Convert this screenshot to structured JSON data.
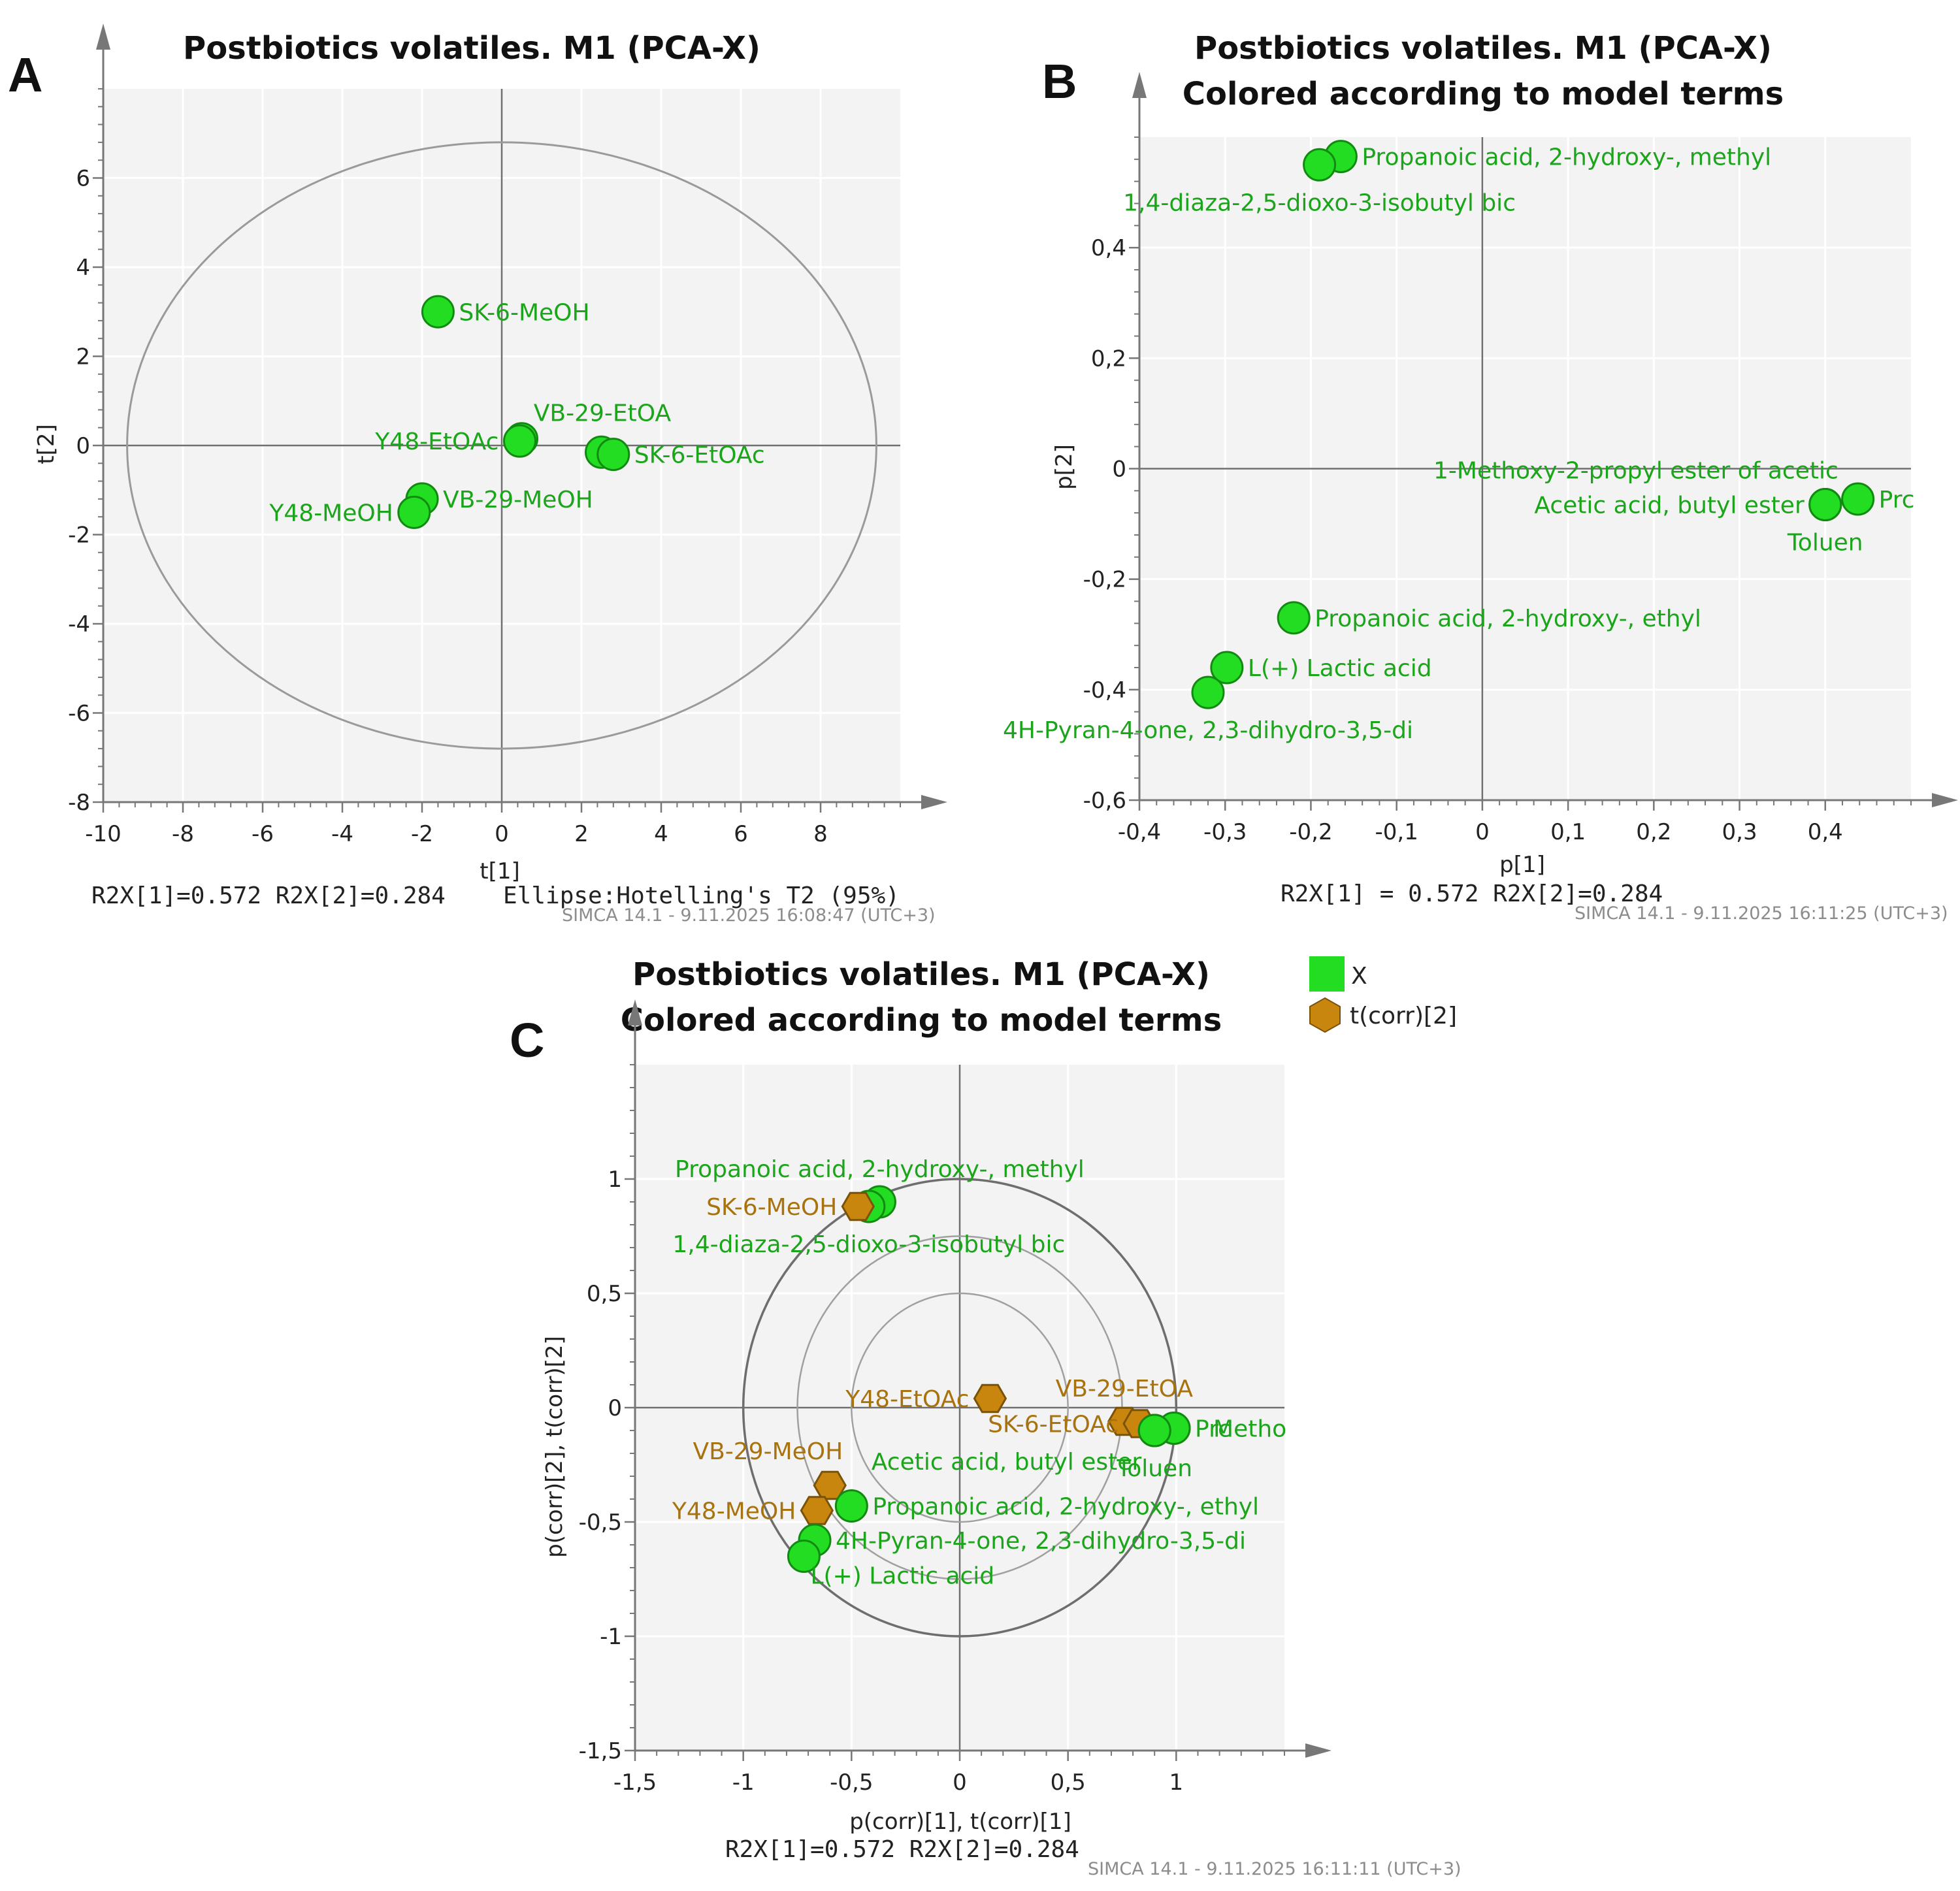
{
  "colors": {
    "point_green": "#22dd22",
    "point_green_edge": "#128a12",
    "label_green": "#1aa51a",
    "point_orange": "#c8860f",
    "point_orange_edge": "#7a5208",
    "label_orange": "#a8730e",
    "plot_bg": "#f3f3f3",
    "grid": "#ffffff",
    "axis": "#777777"
  },
  "chart_data": [
    {
      "id": "A",
      "type": "scatter",
      "panel_label": "A",
      "title": "Postbiotics volatiles. M1 (PCA-X)",
      "xlabel": "t[1]",
      "ylabel": "t[2]",
      "xlim": [
        -10,
        10
      ],
      "ylim": [
        -8,
        8
      ],
      "xticks": [
        -10,
        -8,
        -6,
        -4,
        -2,
        0,
        2,
        4,
        6,
        8
      ],
      "yticks": [
        6,
        4,
        2,
        0,
        -2,
        -4,
        -6,
        -8
      ],
      "grid": true,
      "ellipse": {
        "label": "Ellipse:Hotelling's T2 (95%)",
        "semi_x": 9.4,
        "semi_y": 6.8
      },
      "stats": "R2X[1]=0.572   R2X[2]=0.284",
      "ellipse_caption": "Ellipse:Hotelling's T2 (95%)",
      "footer": "SIMCA 14.1 - 9.11.2025 16:08:47 (UTC+3)",
      "points": [
        {
          "label": "SK-6-MeOH",
          "x": -1.6,
          "y": 3.0,
          "color": "green",
          "label_pos": "right"
        },
        {
          "label": "VB-29-EtOA",
          "x": 0.5,
          "y": 0.15,
          "color": "green",
          "label_pos": "upright",
          "label_x": 0.8,
          "label_y": 0.55
        },
        {
          "label": "Y48-EtOAc",
          "x": 0.45,
          "y": 0.1,
          "color": "green",
          "label_pos": "left"
        },
        {
          "label": "SK-6-EtOAc",
          "x": 2.5,
          "y": -0.15,
          "color": "green",
          "label_pos": "none"
        },
        {
          "label": "SK-6-EtOAc",
          "x": 2.8,
          "y": -0.2,
          "color": "green",
          "label_pos": "right"
        },
        {
          "label": "VB-29-MeOH",
          "x": -2.0,
          "y": -1.2,
          "color": "green",
          "label_pos": "right"
        },
        {
          "label": "Y48-MeOH",
          "x": -2.2,
          "y": -1.5,
          "color": "green",
          "label_pos": "left"
        }
      ]
    },
    {
      "id": "B",
      "type": "scatter",
      "panel_label": "B",
      "title": "Postbiotics volatiles. M1 (PCA-X)",
      "subtitle": "Colored according to model terms",
      "xlabel": "p[1]",
      "ylabel": "p[2]",
      "xlim": [
        -0.4,
        0.5
      ],
      "ylim": [
        -0.6,
        0.6
      ],
      "xticks": [
        -0.4,
        -0.3,
        -0.2,
        -0.1,
        0,
        0.1,
        0.2,
        0.3,
        0.4
      ],
      "xtick_labels": [
        "-0,4",
        "-0,3",
        "-0,2",
        "-0,1",
        "0",
        "0,1",
        "0,2",
        "0,3",
        "0,4"
      ],
      "yticks": [
        0.4,
        0.2,
        0,
        -0.2,
        -0.4,
        -0.6
      ],
      "ytick_labels": [
        "0,4",
        "0,2",
        "0",
        "-0,2",
        "-0,4",
        "-0,6"
      ],
      "grid": true,
      "stats": "R2X[1] = 0.572  R2X[2]=0.284",
      "footer": "SIMCA 14.1 - 9.11.2025 16:11:25 (UTC+3)",
      "points": [
        {
          "label": "Propanoic acid, 2-hydroxy-, methyl",
          "x": -0.165,
          "y": 0.565,
          "color": "green",
          "label_pos": "right"
        },
        {
          "label": "1,4-diaza-2,5-dioxo-3-isobutyl bic",
          "x": -0.19,
          "y": 0.55,
          "color": "green",
          "label_pos": "below"
        },
        {
          "label": "1-Methoxy-2-propyl ester of acetic",
          "x": 0.4,
          "y": -0.065,
          "color": "green",
          "label_pos": "above-left"
        },
        {
          "label": "Acetic acid, butyl ester",
          "x": 0.4,
          "y": -0.065,
          "color": "green",
          "label_pos": "left"
        },
        {
          "label": "Prc",
          "x": 0.438,
          "y": -0.055,
          "color": "green",
          "label_pos": "right"
        },
        {
          "label": "Toluen",
          "x": 0.4,
          "y": -0.065,
          "color": "green",
          "label_pos": "below"
        },
        {
          "label": "Propanoic acid, 2-hydroxy-, ethyl",
          "x": -0.22,
          "y": -0.27,
          "color": "green",
          "label_pos": "right"
        },
        {
          "label": "L(+) Lactic acid",
          "x": -0.298,
          "y": -0.36,
          "color": "green",
          "label_pos": "right"
        },
        {
          "label": "4H-Pyran-4-one, 2,3-dihydro-3,5-di",
          "x": -0.32,
          "y": -0.405,
          "color": "green",
          "label_pos": "below"
        }
      ]
    },
    {
      "id": "C",
      "type": "scatter",
      "panel_label": "C",
      "title": "Postbiotics volatiles. M1 (PCA-X)",
      "subtitle": "Colored according to model terms",
      "xlabel": "p(corr)[1], t(corr)[1]",
      "ylabel": "p(corr)[2], t(corr)[2]",
      "xlim": [
        -1.5,
        1.5
      ],
      "ylim": [
        -1.5,
        1.5
      ],
      "xticks": [
        -1.5,
        -1,
        -0.5,
        0,
        0.5,
        1
      ],
      "xtick_labels": [
        "-1,5",
        "-1",
        "-0,5",
        "0",
        "0,5",
        "1"
      ],
      "yticks": [
        1,
        0.5,
        0,
        -0.5,
        -1,
        -1.5
      ],
      "ytick_labels": [
        "1",
        "0,5",
        "0",
        "-0,5",
        "-1",
        "-1,5"
      ],
      "grid": true,
      "circles_radius": [
        0.5,
        0.75,
        1.0
      ],
      "legend": [
        {
          "label": "X",
          "color": "green",
          "shape": "square"
        },
        {
          "label": "t(corr)[2]",
          "color": "orange",
          "shape": "hexagon"
        }
      ],
      "stats": "R2X[1]=0.572  R2X[2]=0.284",
      "footer": "SIMCA 14.1 - 9.11.2025 16:11:11 (UTC+3)",
      "points": [
        {
          "label": "Propanoic acid, 2-hydroxy-, methyl",
          "x": -0.37,
          "y": 0.9,
          "color": "green",
          "label_pos": "above"
        },
        {
          "label": "1,4-diaza-2,5-dioxo-3-isobutyl bic",
          "x": -0.42,
          "y": 0.88,
          "color": "green",
          "label_pos": "below"
        },
        {
          "label": "SK-6-MeOH",
          "x": -0.47,
          "y": 0.88,
          "color": "orange",
          "label_pos": "left"
        },
        {
          "label": "Y48-EtOAc",
          "x": 0.14,
          "y": 0.04,
          "color": "orange",
          "label_pos": "left"
        },
        {
          "label": "VB-29-EtOA",
          "x": 0.76,
          "y": -0.06,
          "color": "orange",
          "label_pos": "above"
        },
        {
          "label": "SK-6-EtOAc",
          "x": 0.83,
          "y": -0.07,
          "color": "orange",
          "label_pos": "left"
        },
        {
          "label": "Prc",
          "x": 0.9,
          "y": -0.1,
          "color": "green",
          "label_pos": "none"
        },
        {
          "label": "Prc",
          "x": 0.99,
          "y": -0.09,
          "color": "green",
          "label_pos": "right"
        },
        {
          "label": "Metho",
          "x": 0.99,
          "y": -0.09,
          "color": "green",
          "label_pos": "right-2"
        },
        {
          "label": "Toluen",
          "x": 0.9,
          "y": -0.1,
          "color": "green",
          "label_pos": "below"
        },
        {
          "label": "Acetic acid, butyl ester",
          "x": 0.9,
          "y": -0.1,
          "color": "green",
          "label_pos": "below-left"
        },
        {
          "label": "VB-29-MeOH",
          "x": -0.6,
          "y": -0.34,
          "color": "orange",
          "label_pos": "above-left"
        },
        {
          "label": "Y48-MeOH",
          "x": -0.66,
          "y": -0.45,
          "color": "orange",
          "label_pos": "left"
        },
        {
          "label": "Propanoic acid, 2-hydroxy-, ethyl",
          "x": -0.5,
          "y": -0.43,
          "color": "green",
          "label_pos": "right"
        },
        {
          "label": "4H-Pyran-4-one, 2,3-dihydro-3,5-di",
          "x": -0.67,
          "y": -0.58,
          "color": "green",
          "label_pos": "right"
        },
        {
          "label": "L(+) Lactic acid",
          "x": -0.72,
          "y": -0.65,
          "color": "green",
          "label_pos": "below-right"
        }
      ]
    }
  ]
}
